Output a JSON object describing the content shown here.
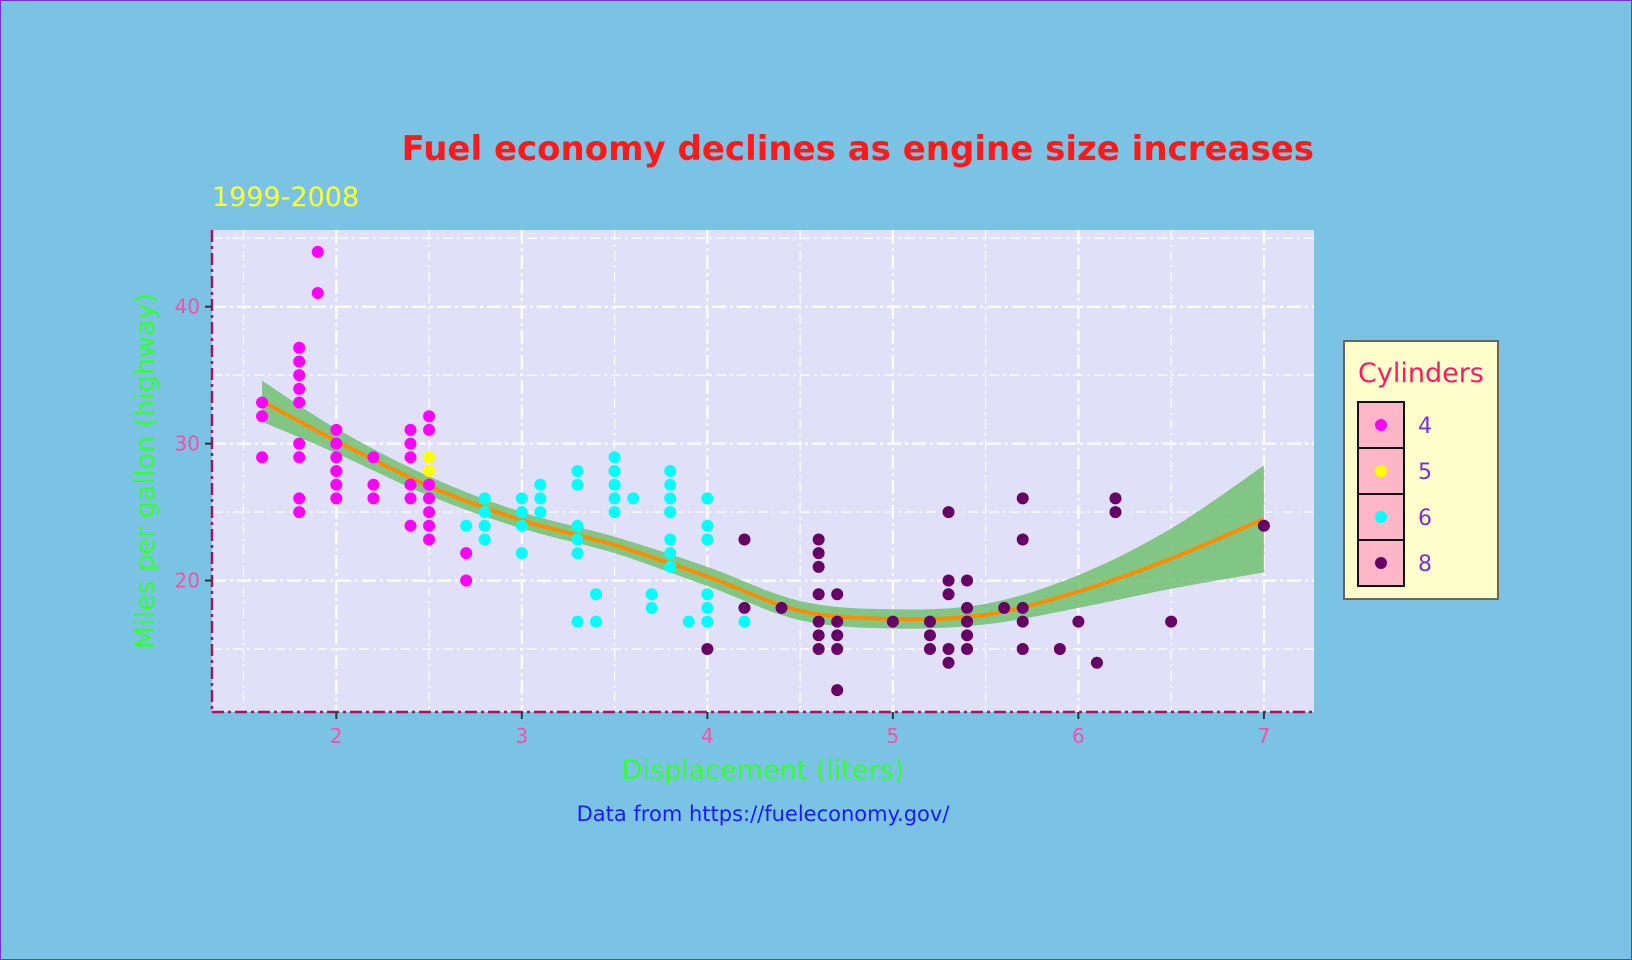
{
  "chart_data": {
    "type": "scatter",
    "title": "Fuel economy declines as engine size increases",
    "subtitle": "1999-2008",
    "caption": "Data from https://fueleconomy.gov/",
    "xlabel": "Displacement (liters)",
    "ylabel": "Miles per gallon (highway)",
    "xlim": [
      1.33,
      7.27
    ],
    "ylim": [
      10.4,
      45.6
    ],
    "xticks": [
      2,
      3,
      4,
      5,
      6,
      7
    ],
    "yticks": [
      20,
      30,
      40
    ],
    "grid": true,
    "legend": {
      "title": "Cylinders",
      "placement": "right",
      "entries": [
        {
          "label": "4",
          "color": "#ff00ff"
        },
        {
          "label": "5",
          "color": "#ffff00"
        },
        {
          "label": "6",
          "color": "#00ffff"
        },
        {
          "label": "8",
          "color": "#660066"
        }
      ]
    },
    "colors": {
      "4": "#ff00ff",
      "5": "#ffff00",
      "6": "#00ffff",
      "8": "#660066",
      "smooth_line": "#ff8c00",
      "smooth_band": "#6bbf6b",
      "panel": "#e0e0f8",
      "grid": "#ffffff",
      "axis_line": "#a0185a"
    },
    "series": [
      {
        "name": "4",
        "points": [
          [
            1.6,
            33
          ],
          [
            1.6,
            32
          ],
          [
            1.6,
            29
          ],
          [
            1.8,
            37
          ],
          [
            1.8,
            36
          ],
          [
            1.8,
            35
          ],
          [
            1.8,
            34
          ],
          [
            1.8,
            33
          ],
          [
            1.8,
            30
          ],
          [
            1.8,
            29
          ],
          [
            1.8,
            26
          ],
          [
            1.8,
            25
          ],
          [
            1.9,
            44
          ],
          [
            1.9,
            41
          ],
          [
            2.0,
            31
          ],
          [
            2.0,
            30
          ],
          [
            2.0,
            29
          ],
          [
            2.0,
            28
          ],
          [
            2.0,
            27
          ],
          [
            2.0,
            26
          ],
          [
            2.2,
            29
          ],
          [
            2.2,
            27
          ],
          [
            2.2,
            26
          ],
          [
            2.4,
            31
          ],
          [
            2.4,
            30
          ],
          [
            2.4,
            29
          ],
          [
            2.4,
            27
          ],
          [
            2.4,
            26
          ],
          [
            2.4,
            24
          ],
          [
            2.5,
            32
          ],
          [
            2.5,
            31
          ],
          [
            2.5,
            27
          ],
          [
            2.5,
            26
          ],
          [
            2.5,
            25
          ],
          [
            2.5,
            24
          ],
          [
            2.5,
            23
          ],
          [
            2.7,
            22
          ],
          [
            2.7,
            20
          ]
        ]
      },
      {
        "name": "5",
        "points": [
          [
            2.5,
            29
          ],
          [
            2.5,
            28
          ]
        ]
      },
      {
        "name": "6",
        "points": [
          [
            2.7,
            24
          ],
          [
            2.8,
            26
          ],
          [
            2.8,
            25
          ],
          [
            2.8,
            24
          ],
          [
            2.8,
            23
          ],
          [
            3.0,
            26
          ],
          [
            3.0,
            25
          ],
          [
            3.0,
            24
          ],
          [
            3.0,
            22
          ],
          [
            3.1,
            27
          ],
          [
            3.1,
            26
          ],
          [
            3.1,
            25
          ],
          [
            3.3,
            28
          ],
          [
            3.3,
            27
          ],
          [
            3.3,
            24
          ],
          [
            3.3,
            23
          ],
          [
            3.3,
            22
          ],
          [
            3.3,
            17
          ],
          [
            3.4,
            19
          ],
          [
            3.4,
            17
          ],
          [
            3.5,
            29
          ],
          [
            3.5,
            28
          ],
          [
            3.5,
            27
          ],
          [
            3.5,
            26
          ],
          [
            3.5,
            25
          ],
          [
            3.6,
            26
          ],
          [
            3.7,
            19
          ],
          [
            3.7,
            18
          ],
          [
            3.8,
            28
          ],
          [
            3.8,
            27
          ],
          [
            3.8,
            26
          ],
          [
            3.8,
            25
          ],
          [
            3.8,
            23
          ],
          [
            3.8,
            22
          ],
          [
            3.8,
            21
          ],
          [
            3.9,
            17
          ],
          [
            4.0,
            26
          ],
          [
            4.0,
            24
          ],
          [
            4.0,
            23
          ],
          [
            4.0,
            19
          ],
          [
            4.0,
            18
          ],
          [
            4.0,
            17
          ],
          [
            4.2,
            17
          ]
        ]
      },
      {
        "name": "8",
        "points": [
          [
            4.0,
            15
          ],
          [
            4.2,
            23
          ],
          [
            4.2,
            18
          ],
          [
            4.4,
            18
          ],
          [
            4.6,
            23
          ],
          [
            4.6,
            22
          ],
          [
            4.6,
            21
          ],
          [
            4.6,
            19
          ],
          [
            4.6,
            17
          ],
          [
            4.6,
            16
          ],
          [
            4.6,
            15
          ],
          [
            4.7,
            19
          ],
          [
            4.7,
            17
          ],
          [
            4.7,
            16
          ],
          [
            4.7,
            15
          ],
          [
            4.7,
            12
          ],
          [
            5.0,
            17
          ],
          [
            5.2,
            17
          ],
          [
            5.2,
            16
          ],
          [
            5.2,
            15
          ],
          [
            5.3,
            25
          ],
          [
            5.3,
            20
          ],
          [
            5.3,
            19
          ],
          [
            5.3,
            15
          ],
          [
            5.3,
            14
          ],
          [
            5.4,
            20
          ],
          [
            5.4,
            18
          ],
          [
            5.4,
            17
          ],
          [
            5.4,
            16
          ],
          [
            5.4,
            15
          ],
          [
            5.6,
            18
          ],
          [
            5.7,
            26
          ],
          [
            5.7,
            23
          ],
          [
            5.7,
            18
          ],
          [
            5.7,
            17
          ],
          [
            5.7,
            15
          ],
          [
            5.9,
            15
          ],
          [
            6.0,
            17
          ],
          [
            6.1,
            14
          ],
          [
            6.2,
            26
          ],
          [
            6.2,
            25
          ],
          [
            6.5,
            17
          ],
          [
            7.0,
            24
          ]
        ]
      }
    ],
    "smooth": {
      "method": "loess",
      "points": [
        {
          "x": 1.6,
          "y": 33.1,
          "lo": 31.6,
          "hi": 34.6
        },
        {
          "x": 2.0,
          "y": 30.2,
          "lo": 29.3,
          "hi": 31.1
        },
        {
          "x": 2.5,
          "y": 26.9,
          "lo": 26.2,
          "hi": 27.6
        },
        {
          "x": 3.0,
          "y": 24.4,
          "lo": 23.8,
          "hi": 25.0
        },
        {
          "x": 3.5,
          "y": 22.6,
          "lo": 22.0,
          "hi": 23.2
        },
        {
          "x": 4.0,
          "y": 20.3,
          "lo": 19.6,
          "hi": 21.0
        },
        {
          "x": 4.5,
          "y": 17.8,
          "lo": 17.1,
          "hi": 18.5
        },
        {
          "x": 5.0,
          "y": 17.2,
          "lo": 16.5,
          "hi": 17.9
        },
        {
          "x": 5.5,
          "y": 17.5,
          "lo": 16.8,
          "hi": 18.3
        },
        {
          "x": 6.0,
          "y": 19.2,
          "lo": 18.0,
          "hi": 20.4
        },
        {
          "x": 6.5,
          "y": 21.6,
          "lo": 19.4,
          "hi": 23.8
        },
        {
          "x": 7.0,
          "y": 24.5,
          "lo": 20.6,
          "hi": 28.4
        }
      ]
    }
  }
}
